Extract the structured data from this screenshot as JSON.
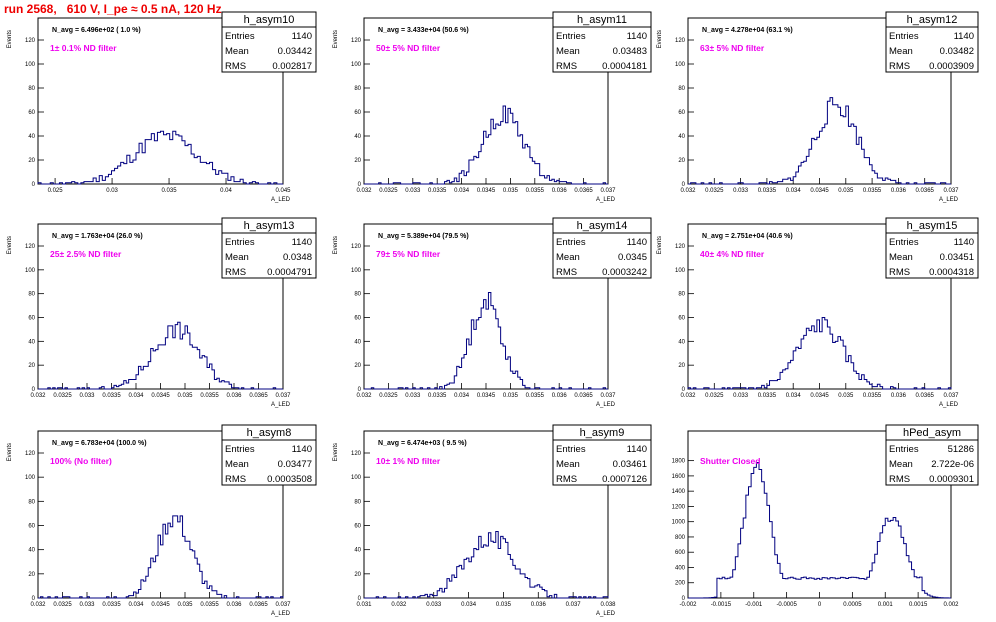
{
  "page_title": "run 2568,   610 V, I_pe ≈ 0.5 nA, 120 Hz",
  "colors": {
    "hist": "#000080",
    "annotation": "#ee00ee",
    "title": "#ee0000",
    "axis": "#000000"
  },
  "chart_data": [
    {
      "type": "histogram",
      "name": "h_asym10",
      "ylabel": "Events",
      "xlabel": "A_LED",
      "navg": "N_avg = 6.496e+02 ( 1.0 %)",
      "note": "1± 0.1% ND filter",
      "stats": [
        [
          "Entries",
          "1140"
        ],
        [
          "Mean",
          "0.03442"
        ],
        [
          "RMS",
          "0.002817"
        ]
      ],
      "xlim": [
        0.0235,
        0.045
      ],
      "ylim": [
        0,
        120
      ],
      "yticks": [
        0,
        20,
        40,
        60,
        80,
        100,
        120
      ],
      "xticks": [
        0.025,
        0.03,
        0.035,
        0.04,
        0.045
      ],
      "xtick_labels": [
        "0.025",
        "0.03",
        "0.035",
        "0.04",
        "0.045"
      ],
      "center": 0.0347,
      "sigma": 0.0028,
      "peak": 40,
      "nbins": 80,
      "seed": 11
    },
    {
      "type": "histogram",
      "name": "h_asym11",
      "ylabel": "Events",
      "xlabel": "A_LED",
      "navg": "N_avg = 3.433e+04 (50.6 %)",
      "note": "50± 5% ND filter",
      "stats": [
        [
          "Entries",
          "1140"
        ],
        [
          "Mean",
          "0.03483"
        ],
        [
          "RMS",
          "0.0004181"
        ]
      ],
      "xlim": [
        0.032,
        0.037
      ],
      "ylim": [
        0,
        120
      ],
      "yticks": [
        0,
        20,
        40,
        60,
        80,
        100,
        120
      ],
      "xticks": [
        0.032,
        0.0325,
        0.033,
        0.0335,
        0.034,
        0.0345,
        0.035,
        0.0355,
        0.036,
        0.0365,
        0.037
      ],
      "xtick_labels": [
        "0.032",
        "0.0325",
        "0.033",
        "0.0335",
        "0.034",
        "0.0345",
        "0.035",
        "0.0355",
        "0.036",
        "0.0365",
        "0.037"
      ],
      "center": 0.03486,
      "sigma": 0.00042,
      "peak": 58,
      "nbins": 100,
      "seed": 22
    },
    {
      "type": "histogram",
      "name": "h_asym12",
      "ylabel": "Events",
      "xlabel": "A_LED",
      "navg": "N_avg = 4.278e+04 (63.1 %)",
      "note": "63± 5% ND filter",
      "stats": [
        [
          "Entries",
          "1140"
        ],
        [
          "Mean",
          "0.03482"
        ],
        [
          "RMS",
          "0.0003909"
        ]
      ],
      "xlim": [
        0.032,
        0.037
      ],
      "ylim": [
        0,
        120
      ],
      "yticks": [
        0,
        20,
        40,
        60,
        80,
        100,
        120
      ],
      "xticks": [
        0.032,
        0.0325,
        0.033,
        0.0335,
        0.034,
        0.0345,
        0.035,
        0.0355,
        0.036,
        0.0365,
        0.037
      ],
      "xtick_labels": [
        "0.032",
        "0.0325",
        "0.033",
        "0.0335",
        "0.034",
        "0.0345",
        "0.035",
        "0.0355",
        "0.036",
        "0.0365",
        "0.037"
      ],
      "center": 0.03483,
      "sigma": 0.00039,
      "peak": 66,
      "nbins": 100,
      "seed": 33
    },
    {
      "type": "histogram",
      "name": "h_asym13",
      "ylabel": "Events",
      "xlabel": "A_LED",
      "navg": "N_avg = 1.763e+04 (26.0 %)",
      "note": "25± 2.5% ND filter",
      "stats": [
        [
          "Entries",
          "1140"
        ],
        [
          "Mean",
          "0.0348"
        ],
        [
          "RMS",
          "0.0004791"
        ]
      ],
      "xlim": [
        0.032,
        0.037
      ],
      "ylim": [
        0,
        120
      ],
      "yticks": [
        0,
        20,
        40,
        60,
        80,
        100,
        120
      ],
      "xticks": [
        0.032,
        0.0325,
        0.033,
        0.0335,
        0.034,
        0.0345,
        0.035,
        0.0355,
        0.036,
        0.0365,
        0.037
      ],
      "xtick_labels": [
        "0.032",
        "0.0325",
        "0.033",
        "0.0335",
        "0.034",
        "0.0345",
        "0.035",
        "0.0355",
        "0.036",
        "0.0365",
        "0.037"
      ],
      "center": 0.03482,
      "sigma": 0.00048,
      "peak": 50,
      "nbins": 100,
      "seed": 44
    },
    {
      "type": "histogram",
      "name": "h_asym14",
      "ylabel": "Events",
      "xlabel": "A_LED",
      "navg": "N_avg = 5.389e+04 (79.5 %)",
      "note": "79± 5% ND filter",
      "stats": [
        [
          "Entries",
          "1140"
        ],
        [
          "Mean",
          "0.0345"
        ],
        [
          "RMS",
          "0.0003242"
        ]
      ],
      "xlim": [
        0.032,
        0.037
      ],
      "ylim": [
        0,
        120
      ],
      "yticks": [
        0,
        20,
        40,
        60,
        80,
        100,
        120
      ],
      "xticks": [
        0.032,
        0.0325,
        0.033,
        0.0335,
        0.034,
        0.0345,
        0.035,
        0.0355,
        0.036,
        0.0365,
        0.037
      ],
      "xtick_labels": [
        "0.032",
        "0.0325",
        "0.033",
        "0.0335",
        "0.034",
        "0.0345",
        "0.035",
        "0.0355",
        "0.036",
        "0.0365",
        "0.037"
      ],
      "center": 0.0345,
      "sigma": 0.00032,
      "peak": 74,
      "nbins": 100,
      "seed": 55
    },
    {
      "type": "histogram",
      "name": "h_asym15",
      "ylabel": "Events",
      "xlabel": "A_LED",
      "navg": "N_avg = 2.751e+04 (40.6 %)",
      "note": "40± 4% ND filter",
      "stats": [
        [
          "Entries",
          "1140"
        ],
        [
          "Mean",
          "0.03451"
        ],
        [
          "RMS",
          "0.0004318"
        ]
      ],
      "xlim": [
        0.032,
        0.037
      ],
      "ylim": [
        0,
        120
      ],
      "yticks": [
        0,
        20,
        40,
        60,
        80,
        100,
        120
      ],
      "xticks": [
        0.032,
        0.0325,
        0.033,
        0.0335,
        0.034,
        0.0345,
        0.035,
        0.0355,
        0.036,
        0.0365,
        0.037
      ],
      "xtick_labels": [
        "0.032",
        "0.0325",
        "0.033",
        "0.0335",
        "0.034",
        "0.0345",
        "0.035",
        "0.0355",
        "0.036",
        "0.0365",
        "0.037"
      ],
      "center": 0.03452,
      "sigma": 0.00043,
      "peak": 54,
      "nbins": 100,
      "seed": 66
    },
    {
      "type": "histogram",
      "name": "h_asym8",
      "ylabel": "Events",
      "xlabel": "A_LED",
      "navg": "N_avg = 6.783e+04 (100.0 %)",
      "note": "100% (No filter)",
      "stats": [
        [
          "Entries",
          "1140"
        ],
        [
          "Mean",
          "0.03477"
        ],
        [
          "RMS",
          "0.0003508"
        ]
      ],
      "xlim": [
        0.032,
        0.037
      ],
      "ylim": [
        0,
        120
      ],
      "yticks": [
        0,
        20,
        40,
        60,
        80,
        100,
        120
      ],
      "xticks": [
        0.032,
        0.0325,
        0.033,
        0.0335,
        0.034,
        0.0345,
        0.035,
        0.0355,
        0.036,
        0.0365,
        0.037
      ],
      "xtick_labels": [
        "0.032",
        "0.0325",
        "0.033",
        "0.0335",
        "0.034",
        "0.0345",
        "0.035",
        "0.0355",
        "0.036",
        "0.0365",
        "0.037"
      ],
      "center": 0.03478,
      "sigma": 0.00035,
      "peak": 66,
      "nbins": 100,
      "seed": 77
    },
    {
      "type": "histogram",
      "name": "h_asym9",
      "ylabel": "Events",
      "xlabel": "A_LED",
      "navg": "N_avg = 6.474e+03 ( 9.5 %)",
      "note": "10± 1% ND filter",
      "stats": [
        [
          "Entries",
          "1140"
        ],
        [
          "Mean",
          "0.03461"
        ],
        [
          "RMS",
          "0.0007126"
        ]
      ],
      "xlim": [
        0.031,
        0.038
      ],
      "ylim": [
        0,
        120
      ],
      "yticks": [
        0,
        20,
        40,
        60,
        80,
        100,
        120
      ],
      "xticks": [
        0.031,
        0.032,
        0.033,
        0.034,
        0.035,
        0.036,
        0.037,
        0.038
      ],
      "xtick_labels": [
        "0.031",
        "0.032",
        "0.033",
        "0.034",
        "0.035",
        "0.036",
        "0.037",
        "0.038"
      ],
      "center": 0.03462,
      "sigma": 0.00071,
      "peak": 50,
      "nbins": 100,
      "seed": 88
    },
    {
      "type": "histogram",
      "name": "hPed_asym",
      "ylabel": "",
      "xlabel": "",
      "navg": "",
      "note": "Shutter Closed",
      "stats": [
        [
          "Entries",
          "51286"
        ],
        [
          "Mean",
          "2.722e-06"
        ],
        [
          "RMS",
          "0.0009301"
        ]
      ],
      "xlim": [
        -0.002,
        0.002
      ],
      "ylim": [
        0,
        1900
      ],
      "yticks": [
        0,
        200,
        400,
        600,
        800,
        1000,
        1200,
        1400,
        1600,
        1800
      ],
      "xticks": [
        -0.002,
        -0.0015,
        -0.001,
        -0.0005,
        0,
        0.0005,
        0.001,
        0.0015,
        0.002
      ],
      "xtick_labels": [
        "-0.002",
        "-0.0015",
        "-0.001",
        "-0.0005",
        "0",
        "0.0005",
        "0.001",
        "0.0015",
        "0.002"
      ],
      "bimodal": true,
      "modes": [
        [
          -0.00095,
          0.0002,
          1700
        ],
        [
          0.0011,
          0.00022,
          1060
        ]
      ],
      "baseline": 260,
      "nbins": 100,
      "seed": 99
    }
  ]
}
